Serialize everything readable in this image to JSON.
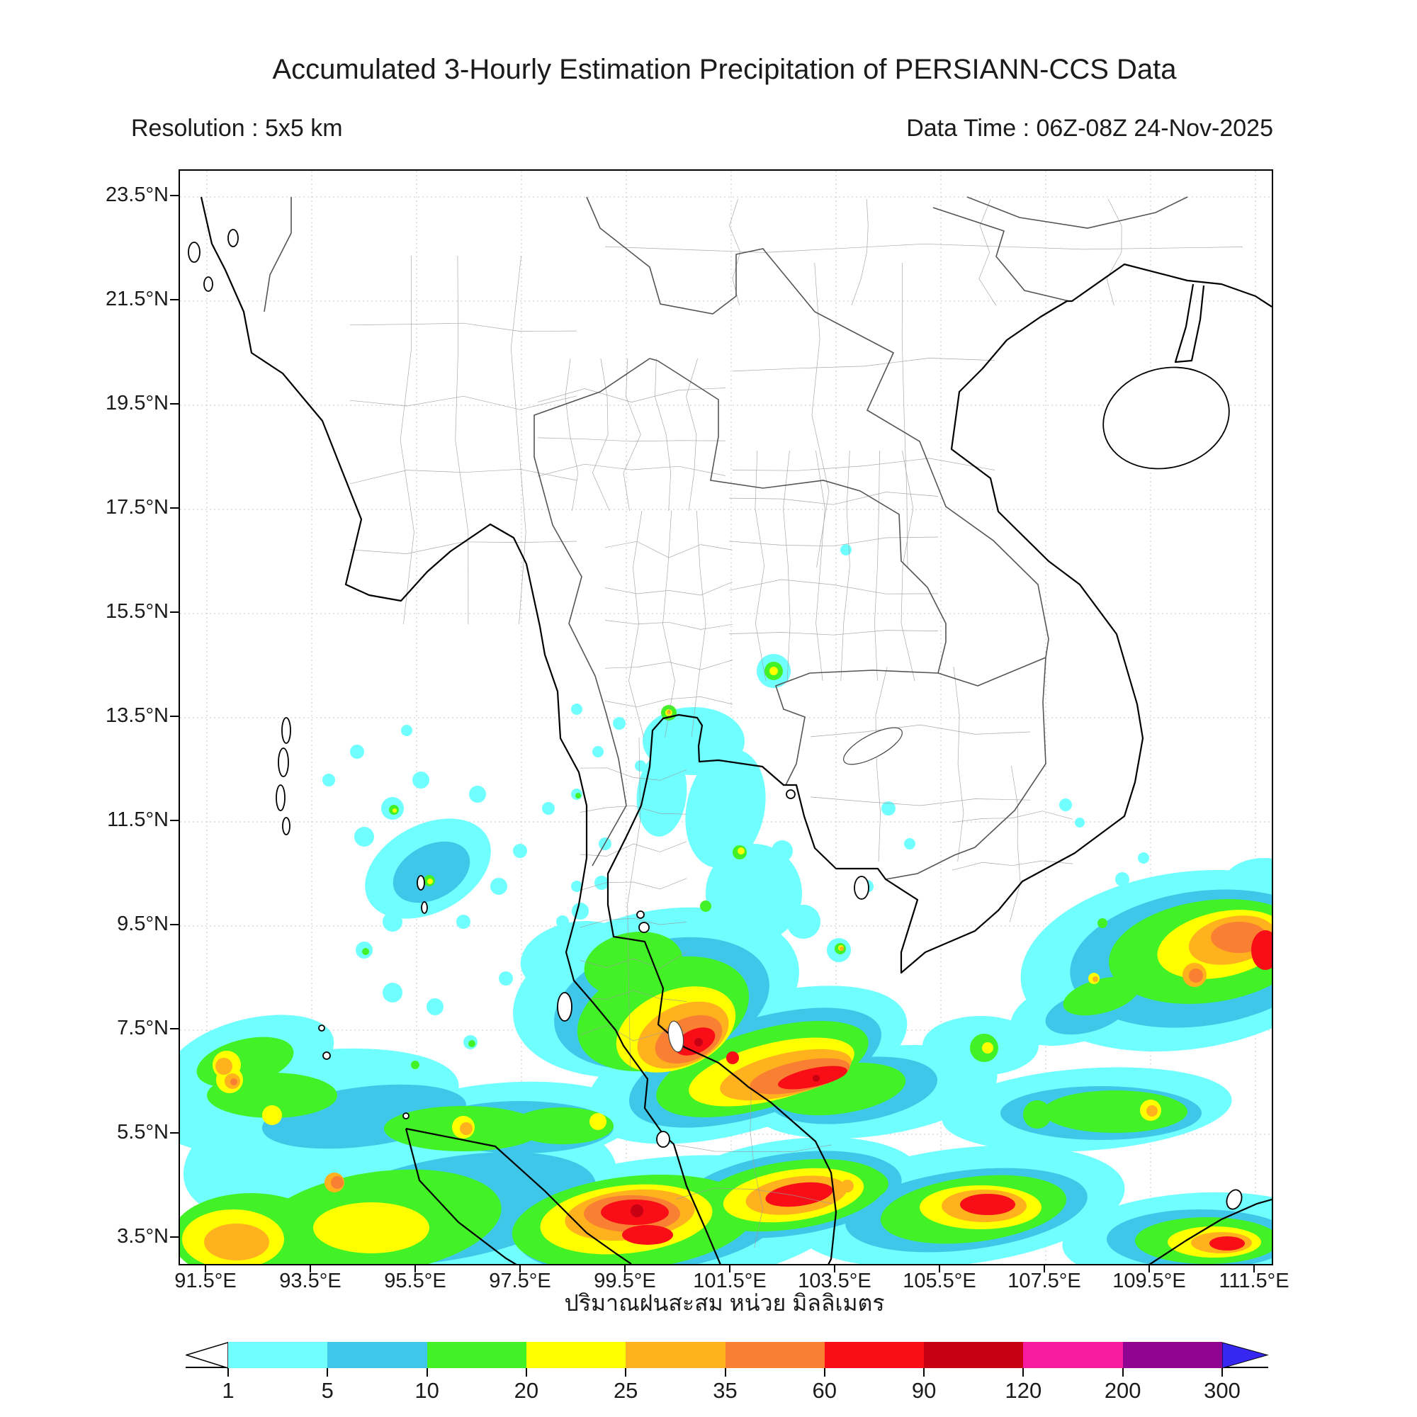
{
  "header": {
    "title": "Accumulated 3-Hourly Estimation Precipitation of PERSIANN-CCS Data",
    "resolution": "Resolution : 5x5 km",
    "data_time": "Data Time : 06Z-08Z 24-Nov-2025"
  },
  "map": {
    "lat_ticks": [
      "23.5°N",
      "21.5°N",
      "19.5°N",
      "17.5°N",
      "15.5°N",
      "13.5°N",
      "11.5°N",
      "9.5°N",
      "7.5°N",
      "5.5°N",
      "3.5°N"
    ],
    "lon_ticks": [
      "91.5°E",
      "93.5°E",
      "95.5°E",
      "97.5°E",
      "99.5°E",
      "101.5°E",
      "103.5°E",
      "105.5°E",
      "107.5°E",
      "109.5°E",
      "111.5°E"
    ],
    "caption": "ปริมาณฝนสะสม หน่วย มิลลิเมตร"
  },
  "colorbar": {
    "unit": "mm",
    "tick_labels": [
      "1",
      "5",
      "10",
      "20",
      "25",
      "35",
      "60",
      "90",
      "120",
      "200",
      "300"
    ],
    "segments": [
      {
        "range": "1-5",
        "color": "#70FFFF"
      },
      {
        "range": "5-10",
        "color": "#3EC7E8"
      },
      {
        "range": "10-20",
        "color": "#43F127"
      },
      {
        "range": "20-25",
        "color": "#FFFF00"
      },
      {
        "range": "25-35",
        "color": "#FFB11E"
      },
      {
        "range": "35-60",
        "color": "#F98032"
      },
      {
        "range": "60-90",
        "color": "#F90D16"
      },
      {
        "range": "90-120",
        "color": "#C70014"
      },
      {
        "range": "120-200",
        "color": "#F71B9F"
      },
      {
        "range": "200-300",
        "color": "#910391"
      }
    ],
    "underflow_color": "#FFFFFF",
    "overflow_color": "#3628F0"
  }
}
